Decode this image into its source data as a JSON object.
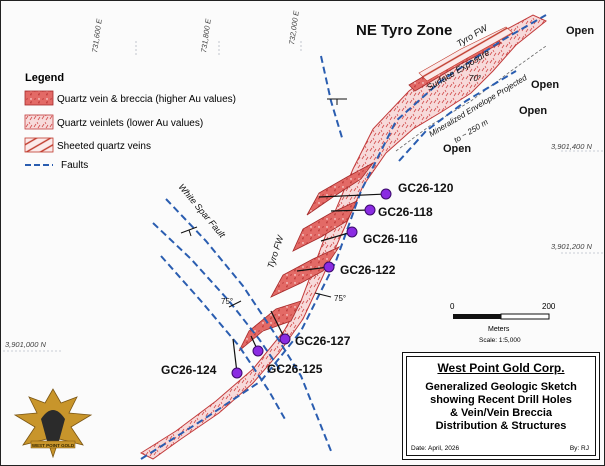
{
  "map": {
    "zone_title": "NE Tyro Zone",
    "grid_easting_labels": [
      "731,600 E",
      "731,800 E",
      "732,000 E"
    ],
    "grid_northing_labels": [
      "3,901,400 N",
      "3,901,200 N",
      "3,901,000 N"
    ],
    "open_labels": [
      "Open",
      "Open",
      "Open",
      "Open"
    ],
    "annotations": {
      "tyro_fw_upper": "Tyro FW",
      "surface_exposure": "Surface Exposure",
      "dip_70": "70°",
      "envelope_line1": "Mineralized Envelope Projected",
      "envelope_line2": "to ~ 250 m",
      "white_spar_fault": "White Spar Fault",
      "tyro_fw_lower": "Tyro FW",
      "dip_75_left": "75°",
      "dip_75_right": "75°"
    },
    "drill_holes": [
      "GC26-120",
      "GC26-118",
      "GC26-116",
      "GC26-122",
      "GC26-127",
      "GC26-125",
      "GC26-124"
    ],
    "colors": {
      "vein_breccia": "#e05a5a",
      "veinlets": "#f6d7d7",
      "fault": "#2a5db0",
      "drill_hole": "#8a2be2"
    }
  },
  "legend": {
    "title": "Legend",
    "items": [
      {
        "label": "Quartz vein & breccia (higher Au values)",
        "kind": "vein-breccia"
      },
      {
        "label": "Quartz veinlets (lower Au values)",
        "kind": "veinlets"
      },
      {
        "label": "Sheeted quartz veins",
        "kind": "sheeted"
      },
      {
        "label": "Faults",
        "kind": "fault"
      }
    ]
  },
  "scale": {
    "tick_start": "0",
    "tick_end": "200",
    "units": "Meters",
    "ratio": "Scale: 1:5,000"
  },
  "title_block": {
    "company": "West Point Gold Corp.",
    "subtitle": "Generalized Geologic Sketch\nshowing Recent Drill Holes\n& Vein/Vein Breccia\nDistribution & Structures",
    "date": "Date:  April, 2026",
    "author": "By:  RJ"
  },
  "logo": {
    "text": "WEST POINT GOLD"
  }
}
